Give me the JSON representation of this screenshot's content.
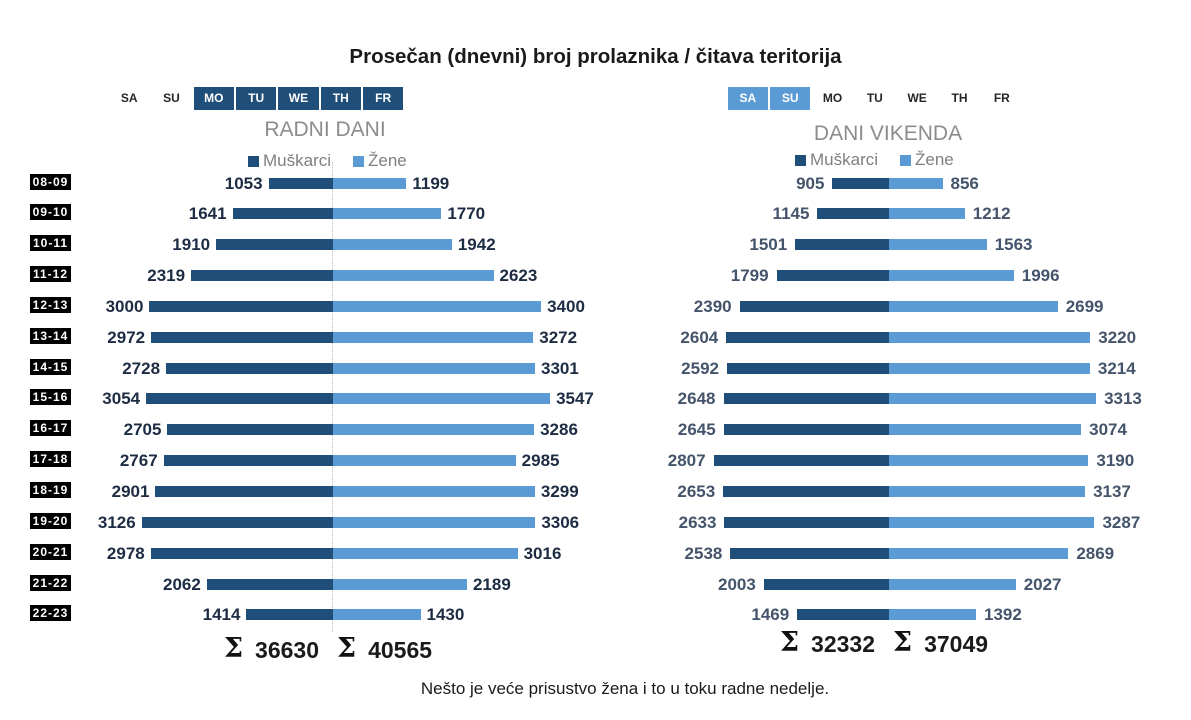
{
  "title": "Prosečan (dnevni) broj prolaznika / čitava teritorija",
  "note": "Nešto je veće prisustvo žena i to u toku radne nedelje.",
  "sigma": "Σ",
  "colors": {
    "male": "#1F4E79",
    "female": "#5B9BD5",
    "weekday_value_label": "#1d2c43",
    "weekend_value_label": "#44546A",
    "subtitle": "#8c8c8c",
    "legend_text": "#7f7f7f",
    "time_box_bg": "#000000",
    "time_box_text": "#ffffff"
  },
  "chart_data": [
    {
      "type": "bar",
      "variant": "tornado",
      "title": "RADNI DANI",
      "days": [
        "SA",
        "SU",
        "MO",
        "TU",
        "WE",
        "TH",
        "FR"
      ],
      "highlighted_days": [
        "MO",
        "TU",
        "WE",
        "TH",
        "FR"
      ],
      "legend": [
        "Muškarci",
        "Žene"
      ],
      "categories": [
        "08-09",
        "09-10",
        "10-11",
        "11-12",
        "12-13",
        "13-14",
        "14-15",
        "15-16",
        "16-17",
        "17-18",
        "18-19",
        "19-20",
        "20-21",
        "21-22",
        "22-23"
      ],
      "series": [
        {
          "name": "Muškarci",
          "values": [
            1053,
            1641,
            1910,
            2319,
            3000,
            2972,
            2728,
            3054,
            2705,
            2767,
            2901,
            3126,
            2978,
            2062,
            1414
          ]
        },
        {
          "name": "Žene",
          "values": [
            1199,
            1770,
            1942,
            2623,
            3400,
            3272,
            3301,
            3547,
            3286,
            2985,
            3299,
            3306,
            3016,
            2189,
            1430
          ]
        }
      ],
      "totals": [
        "36630",
        "40565"
      ]
    },
    {
      "type": "bar",
      "variant": "tornado",
      "title": "DANI VIKENDA",
      "days": [
        "SA",
        "SU",
        "MO",
        "TU",
        "WE",
        "TH",
        "FR"
      ],
      "highlighted_days": [
        "SA",
        "SU"
      ],
      "legend": [
        "Muškarci",
        "Žene"
      ],
      "categories": [
        "08-09",
        "09-10",
        "10-11",
        "11-12",
        "12-13",
        "13-14",
        "14-15",
        "15-16",
        "16-17",
        "17-18",
        "18-19",
        "19-20",
        "20-21",
        "21-22",
        "22-23"
      ],
      "series": [
        {
          "name": "Muškarci",
          "values": [
            905,
            1145,
            1501,
            1799,
            2390,
            2604,
            2592,
            2648,
            2645,
            2807,
            2653,
            2633,
            2538,
            2003,
            1469
          ]
        },
        {
          "name": "Žene",
          "values": [
            856,
            1212,
            1563,
            1996,
            2699,
            3220,
            3214,
            3313,
            3074,
            3190,
            3137,
            3287,
            2869,
            2027,
            1392
          ]
        }
      ],
      "totals": [
        "32332",
        "37049"
      ]
    }
  ]
}
